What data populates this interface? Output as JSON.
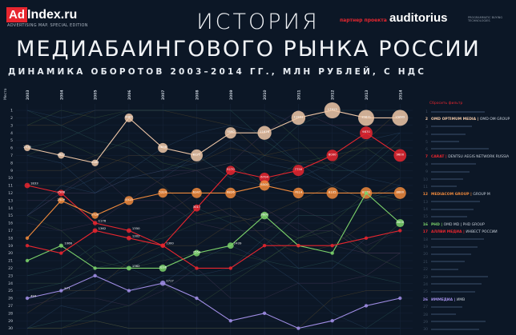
{
  "header": {
    "logo_box": "Ad",
    "logo_rest": "Index.ru",
    "edition": "ADVERTISING MAP. SPECIAL EDITION",
    "title_line1": "ИСТОРИЯ",
    "title_line2": "МЕДИАБАИНГОВОГО РЫНКА РОССИИ",
    "subtitle": "ДИНАМИКА ОБОРОТОВ 2003–2014 ГГ., МЛН РУБЛЕЙ, С НДС",
    "partner": "партнер проекта",
    "partner_name": "auditorius",
    "partner_note": "PROGRAMMATIC BUYING TECHNOLOGIES"
  },
  "legend": {
    "reset": "Сбросить фильтр",
    "items": [
      {
        "rank": "2",
        "name": "OMD OPTIMUM MEDIA",
        "group": "OMD OM GROUP",
        "color": "#f0c8a8"
      },
      {
        "rank": "7",
        "name": "CARAT",
        "group": "DENTSU AEGIS NETWORK RUSSIA",
        "color": "#e8262f"
      },
      {
        "rank": "12",
        "name": "MEDIACOM GROUP",
        "group": "GROUP M",
        "color": "#f08a3c"
      },
      {
        "rank": "16",
        "name": "PHD",
        "group": "OMD MD | PHD GROUP",
        "color": "#7cd36b"
      },
      {
        "rank": "17",
        "name": "АЛЛВИ МЕДИА",
        "group": "ИНВЕСТ РОССИИ",
        "color": "#e8262f"
      },
      {
        "rank": "26",
        "name": "ИММЕДИА",
        "group": "ИМВ",
        "color": "#a18ee6"
      }
    ]
  },
  "chart_data": {
    "type": "line",
    "x": [
      2003,
      2004,
      2005,
      2006,
      2007,
      2008,
      2009,
      2010,
      2011,
      2012,
      2013,
      2014
    ],
    "ylabel": "Место",
    "y_ticks": [
      1,
      2,
      3,
      4,
      5,
      6,
      7,
      8,
      9,
      10,
      11,
      12,
      13,
      14,
      15,
      16,
      17,
      18,
      19,
      20,
      21,
      22,
      23,
      24,
      25,
      26,
      27,
      28,
      29,
      30
    ],
    "y_inverted": true,
    "series": [
      {
        "name": "OMD OPTIMUM MEDIA",
        "color": "#f0c8a8",
        "ranks": [
          6,
          7,
          8,
          2,
          6,
          7,
          4,
          4,
          2,
          1,
          2,
          2
        ],
        "labels": [
          "2578",
          "2623",
          "2783",
          "4487",
          "5898",
          "8773",
          "7890",
          "11676",
          "11901",
          "17913",
          "15671",
          "15689"
        ]
      },
      {
        "name": "CARAT",
        "color": "#e8262f",
        "ranks": [
          11,
          12,
          16,
          17,
          19,
          14,
          9,
          10,
          9,
          7,
          4,
          7
        ],
        "labels": [
          "1833",
          "2566",
          "1176",
          "1350",
          "1300",
          "3017",
          "5270",
          "6704",
          "7750",
          "8000",
          "9870",
          "9600"
        ]
      },
      {
        "name": "MEDIACOM GROUP",
        "color": "#f08a3c",
        "ranks": [
          18,
          13,
          15,
          13,
          12,
          12,
          12,
          11,
          12,
          12,
          12,
          12
        ],
        "labels": [
          "",
          "2509",
          "2726",
          "4913",
          "5324",
          "6347",
          "6826",
          "6500",
          "7014",
          "8105",
          "8276",
          "8680"
        ]
      },
      {
        "name": "PHD",
        "color": "#7cd36b",
        "ranks": [
          21,
          19,
          22,
          22,
          22,
          20,
          19,
          15,
          19,
          20,
          12,
          16
        ],
        "labels": [
          "",
          "1066",
          "",
          "1362",
          "3216",
          "2554",
          "2439",
          "3600",
          "",
          "",
          "",
          "4000"
        ]
      },
      {
        "name": "АЛЛВИ МЕДИА",
        "color": "#e8262f",
        "ranks": [
          19,
          20,
          17,
          18,
          19,
          22,
          22,
          19,
          19,
          19,
          18,
          17
        ],
        "labels": [
          "",
          "",
          "1362",
          "1302",
          "",
          "",
          "",
          "",
          "",
          "",
          "",
          ""
        ]
      },
      {
        "name": "ИММЕДИА",
        "color": "#a18ee6",
        "ranks": [
          26,
          25,
          23,
          25,
          24,
          26,
          29,
          28,
          30,
          29,
          27,
          26
        ],
        "labels": [
          "494",
          "571",
          "",
          "",
          "1717",
          "",
          "",
          "",
          "",
          "",
          "",
          ""
        ]
      }
    ]
  }
}
